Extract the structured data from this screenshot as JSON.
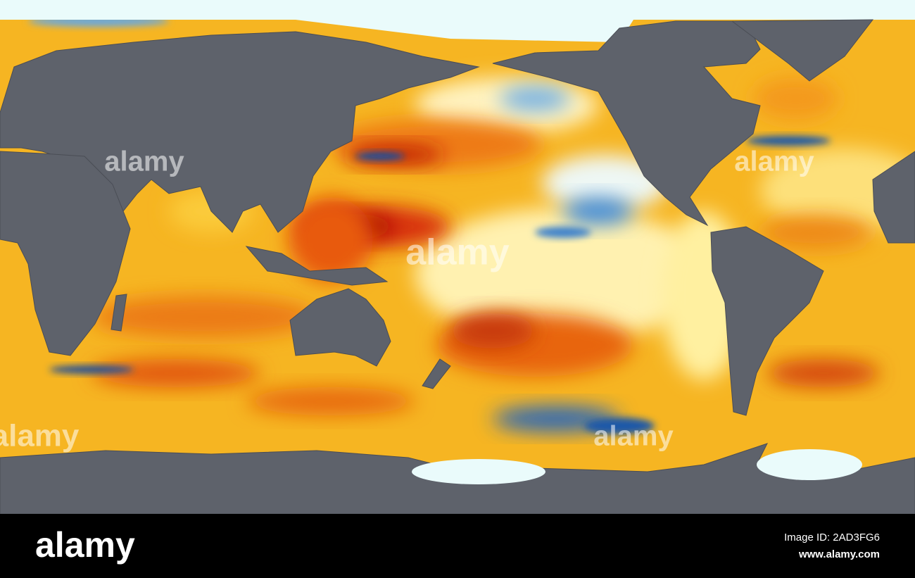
{
  "map": {
    "watermark": "alamy"
  },
  "footer": {
    "logo": "alamy",
    "image_id": "Image ID: 2AD3FG6",
    "url": "www.alamy.com"
  }
}
